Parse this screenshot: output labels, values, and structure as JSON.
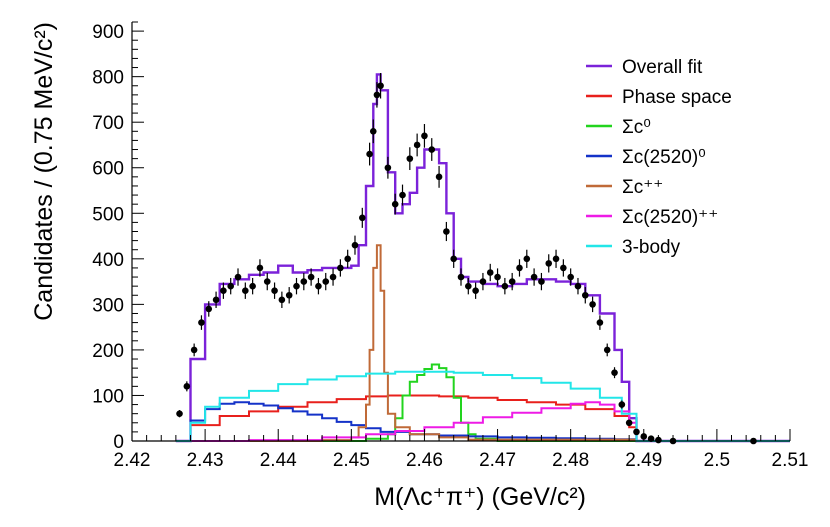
{
  "chart_data": {
    "type": "histogram",
    "xlabel": "M(Λc⁺π⁺) (GeV/c²)",
    "ylabel": "Candidates / (0.75 MeV/c²)",
    "xlim": [
      2.42,
      2.51
    ],
    "ylim": [
      0,
      920
    ],
    "x_ticks": [
      "2.42",
      "2.43",
      "2.44",
      "2.45",
      "2.46",
      "2.47",
      "2.48",
      "2.49",
      "2.5",
      "2.51"
    ],
    "y_ticks": [
      "0",
      "100",
      "200",
      "300",
      "400",
      "500",
      "600",
      "700",
      "800",
      "900"
    ],
    "legend_position": "top-right",
    "legend": [
      {
        "label": "Overall fit",
        "color": "#7b22d9"
      },
      {
        "label": "Phase space",
        "color": "#e8201c"
      },
      {
        "label": "Σc⁰",
        "color": "#22d41e"
      },
      {
        "label": "Σc(2520)⁰",
        "color": "#1432c8"
      },
      {
        "label": "Σc⁺⁺",
        "color": "#c06a38"
      },
      {
        "label": "Σc(2520)⁺⁺",
        "color": "#ee1be6"
      },
      {
        "label": "3-body",
        "color": "#22e6e8"
      }
    ],
    "series": [
      {
        "name": "Overall fit",
        "color": "#7b22d9",
        "x": [
          2.426,
          2.428,
          2.43,
          2.432,
          2.434,
          2.436,
          2.438,
          2.44,
          2.442,
          2.444,
          2.446,
          2.448,
          2.45,
          2.451,
          2.452,
          2.453,
          2.4535,
          2.454,
          2.455,
          2.456,
          2.457,
          2.458,
          2.459,
          2.46,
          2.461,
          2.462,
          2.463,
          2.464,
          2.465,
          2.466,
          2.468,
          2.47,
          2.472,
          2.474,
          2.476,
          2.478,
          2.48,
          2.482,
          2.484,
          2.486,
          2.487,
          2.488,
          2.489,
          2.49,
          2.491,
          2.492,
          2.51
        ],
        "y": [
          0,
          180,
          300,
          345,
          355,
          365,
          370,
          385,
          370,
          375,
          380,
          380,
          385,
          430,
          560,
          740,
          805,
          770,
          590,
          500,
          520,
          545,
          600,
          640,
          640,
          610,
          500,
          400,
          360,
          350,
          345,
          340,
          345,
          355,
          355,
          350,
          345,
          320,
          280,
          200,
          130,
          50,
          0,
          0,
          0,
          0,
          0
        ]
      },
      {
        "name": "Phase space",
        "color": "#e8201c",
        "x": [
          2.426,
          2.428,
          2.432,
          2.436,
          2.44,
          2.444,
          2.448,
          2.452,
          2.455,
          2.458,
          2.462,
          2.466,
          2.47,
          2.474,
          2.478,
          2.482,
          2.486,
          2.488,
          2.489,
          2.51
        ],
        "y": [
          0,
          35,
          55,
          65,
          75,
          85,
          92,
          98,
          100,
          100,
          98,
          95,
          90,
          85,
          80,
          70,
          55,
          30,
          0,
          0
        ]
      },
      {
        "name": "Σc⁰",
        "color": "#22d41e",
        "x": [
          2.426,
          2.445,
          2.452,
          2.455,
          2.456,
          2.457,
          2.458,
          2.459,
          2.46,
          2.461,
          2.462,
          2.463,
          2.464,
          2.465,
          2.466,
          2.467,
          2.47,
          2.49,
          2.51
        ],
        "y": [
          0,
          0,
          5,
          15,
          50,
          100,
          130,
          145,
          158,
          168,
          160,
          140,
          95,
          40,
          15,
          5,
          0,
          0,
          0
        ]
      },
      {
        "name": "Σc(2520)⁰",
        "color": "#1432c8",
        "x": [
          2.426,
          2.428,
          2.43,
          2.432,
          2.434,
          2.436,
          2.438,
          2.44,
          2.442,
          2.444,
          2.446,
          2.448,
          2.45,
          2.452,
          2.454,
          2.458,
          2.462,
          2.466,
          2.47,
          2.474,
          2.478,
          2.482,
          2.486,
          2.489,
          2.51
        ],
        "y": [
          0,
          45,
          70,
          82,
          85,
          82,
          78,
          72,
          65,
          58,
          50,
          42,
          35,
          28,
          20,
          15,
          12,
          10,
          8,
          7,
          6,
          5,
          4,
          0,
          0
        ]
      },
      {
        "name": "Σc⁺⁺",
        "color": "#c06a38",
        "x": [
          2.426,
          2.446,
          2.45,
          2.451,
          2.452,
          2.4525,
          2.453,
          2.4535,
          2.454,
          2.4545,
          2.455,
          2.456,
          2.458,
          2.462,
          2.466,
          2.489,
          2.51
        ],
        "y": [
          0,
          2,
          8,
          30,
          80,
          200,
          380,
          430,
          330,
          150,
          60,
          30,
          15,
          8,
          3,
          0,
          0
        ]
      },
      {
        "name": "Σc(2520)⁺⁺",
        "color": "#ee1be6",
        "x": [
          2.426,
          2.436,
          2.446,
          2.452,
          2.456,
          2.46,
          2.464,
          2.468,
          2.472,
          2.476,
          2.48,
          2.482,
          2.484,
          2.486,
          2.488,
          2.489,
          2.51
        ],
        "y": [
          0,
          2,
          8,
          15,
          22,
          30,
          40,
          52,
          62,
          72,
          82,
          85,
          80,
          65,
          40,
          0,
          0
        ]
      },
      {
        "name": "3-body",
        "color": "#22e6e8",
        "x": [
          2.426,
          2.428,
          2.43,
          2.432,
          2.436,
          2.44,
          2.444,
          2.448,
          2.452,
          2.456,
          2.46,
          2.464,
          2.468,
          2.472,
          2.476,
          2.48,
          2.484,
          2.487,
          2.489,
          2.51
        ],
        "y": [
          0,
          40,
          75,
          95,
          110,
          125,
          135,
          142,
          148,
          152,
          152,
          150,
          145,
          138,
          128,
          115,
          95,
          60,
          0,
          0
        ]
      }
    ],
    "points": {
      "name": "Data",
      "color": "#000000",
      "x": [
        2.4265,
        2.4275,
        2.4285,
        2.4295,
        2.4305,
        2.4315,
        2.4325,
        2.4335,
        2.4345,
        2.4355,
        2.4365,
        2.4375,
        2.4385,
        2.4395,
        2.4405,
        2.4415,
        2.4425,
        2.4435,
        2.4445,
        2.4455,
        2.4465,
        2.4475,
        2.4485,
        2.4495,
        2.4505,
        2.4515,
        2.4525,
        2.453,
        2.4535,
        2.454,
        2.455,
        2.456,
        2.457,
        2.458,
        2.459,
        2.46,
        2.461,
        2.462,
        2.463,
        2.464,
        2.465,
        2.466,
        2.467,
        2.468,
        2.469,
        2.47,
        2.471,
        2.472,
        2.473,
        2.474,
        2.475,
        2.476,
        2.477,
        2.478,
        2.479,
        2.48,
        2.481,
        2.482,
        2.483,
        2.484,
        2.485,
        2.486,
        2.487,
        2.488,
        2.489,
        2.49,
        2.491,
        2.492,
        2.494,
        2.505
      ],
      "y": [
        60,
        120,
        200,
        260,
        290,
        310,
        330,
        340,
        360,
        330,
        340,
        380,
        350,
        330,
        310,
        320,
        340,
        350,
        360,
        340,
        350,
        360,
        380,
        400,
        430,
        490,
        630,
        680,
        760,
        780,
        600,
        520,
        540,
        620,
        650,
        670,
        640,
        580,
        460,
        400,
        360,
        340,
        330,
        350,
        370,
        360,
        340,
        350,
        380,
        400,
        360,
        350,
        390,
        400,
        380,
        360,
        340,
        320,
        300,
        260,
        200,
        150,
        80,
        40,
        20,
        10,
        5,
        2,
        0,
        0
      ],
      "err": [
        8,
        11,
        14,
        16,
        17,
        18,
        18,
        18,
        19,
        18,
        18,
        19,
        19,
        18,
        18,
        18,
        18,
        19,
        19,
        18,
        19,
        19,
        19,
        20,
        21,
        22,
        25,
        26,
        28,
        28,
        24,
        23,
        23,
        25,
        25,
        26,
        25,
        24,
        21,
        20,
        19,
        18,
        18,
        19,
        19,
        19,
        18,
        19,
        19,
        20,
        19,
        19,
        20,
        20,
        19,
        19,
        18,
        18,
        17,
        16,
        14,
        12,
        9,
        6,
        4,
        3,
        2,
        1,
        0,
        0
      ]
    }
  }
}
